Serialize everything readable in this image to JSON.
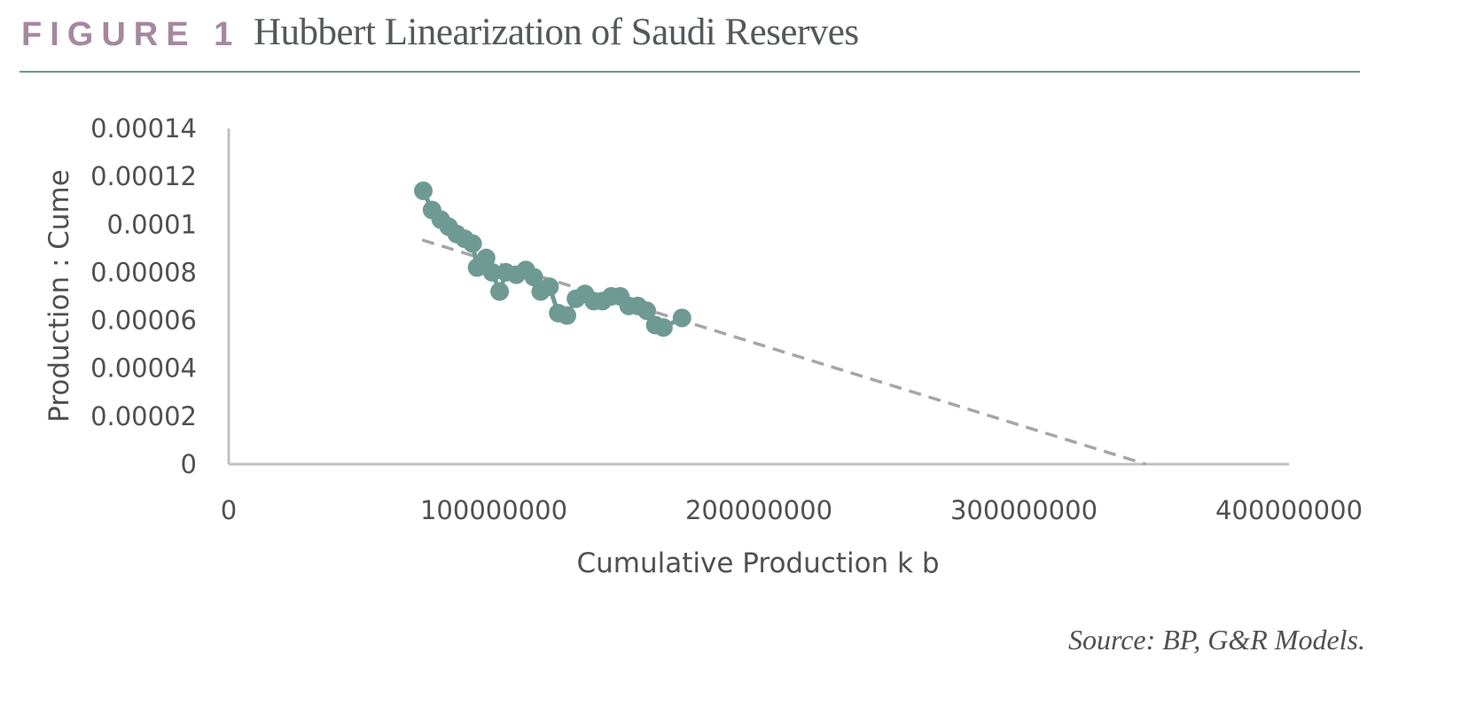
{
  "figure": {
    "label": "FIGURE 1",
    "title": "Hubbert Linearization of Saudi Reserves",
    "source": "Source: BP, G&R Models."
  },
  "colors": {
    "marker": "#6f9a94",
    "trendline": "#a6a6a6",
    "axis": "#c0c0c0",
    "label_accent": "#a6889f",
    "rule": "#6b9690"
  },
  "chart_data": {
    "type": "scatter",
    "xlabel": "Cumulative Production k b",
    "ylabel": "Production : Cume",
    "xlim": [
      0,
      400000000
    ],
    "ylim": [
      0,
      0.00014
    ],
    "x_ticks": [
      0,
      100000000,
      200000000,
      300000000,
      400000000
    ],
    "x_tick_labels": [
      "0",
      "100000000",
      "200000000",
      "300000000",
      "400000000"
    ],
    "y_ticks": [
      0,
      2e-05,
      4e-05,
      6e-05,
      8e-05,
      0.0001,
      0.00012,
      0.00014
    ],
    "y_tick_labels": [
      "0",
      "0.00002",
      "0.00004",
      "0.00006",
      "0.00008",
      "0.0001",
      "0.00012",
      "0.00014"
    ],
    "grid": false,
    "series": [
      {
        "type": "scatter-line",
        "points": [
          [
            73400000,
            0.000114
          ],
          [
            76700000,
            0.000106
          ],
          [
            80000000,
            0.000102
          ],
          [
            83000000,
            9.9e-05
          ],
          [
            86000000,
            9.6e-05
          ],
          [
            89000000,
            9.4e-05
          ],
          [
            92000000,
            9.2e-05
          ],
          [
            93700000,
            8.2e-05
          ],
          [
            97100000,
            8.6e-05
          ],
          [
            99400000,
            8e-05
          ],
          [
            102200000,
            7.2e-05
          ],
          [
            104600000,
            8e-05
          ],
          [
            108500000,
            7.9e-05
          ],
          [
            112100000,
            8.1e-05
          ],
          [
            115100000,
            7.8e-05
          ],
          [
            117700000,
            7.2e-05
          ],
          [
            121000000,
            7.4e-05
          ],
          [
            124300000,
            6.3e-05
          ],
          [
            127600000,
            6.2e-05
          ],
          [
            131000000,
            6.9e-05
          ],
          [
            134400000,
            7.1e-05
          ],
          [
            137700000,
            6.8e-05
          ],
          [
            141000000,
            6.8e-05
          ],
          [
            144300000,
            7e-05
          ],
          [
            147700000,
            7e-05
          ],
          [
            150900000,
            6.6e-05
          ],
          [
            154300000,
            6.6e-05
          ],
          [
            157700000,
            6.4e-05
          ],
          [
            160900000,
            5.8e-05
          ],
          [
            164000000,
            5.7e-05
          ],
          [
            171000000,
            6.1e-05
          ]
        ]
      },
      {
        "type": "trendline",
        "style": "dashed",
        "points": [
          [
            73000000,
            9.35e-05
          ],
          [
            346000000,
            0
          ]
        ]
      }
    ]
  }
}
